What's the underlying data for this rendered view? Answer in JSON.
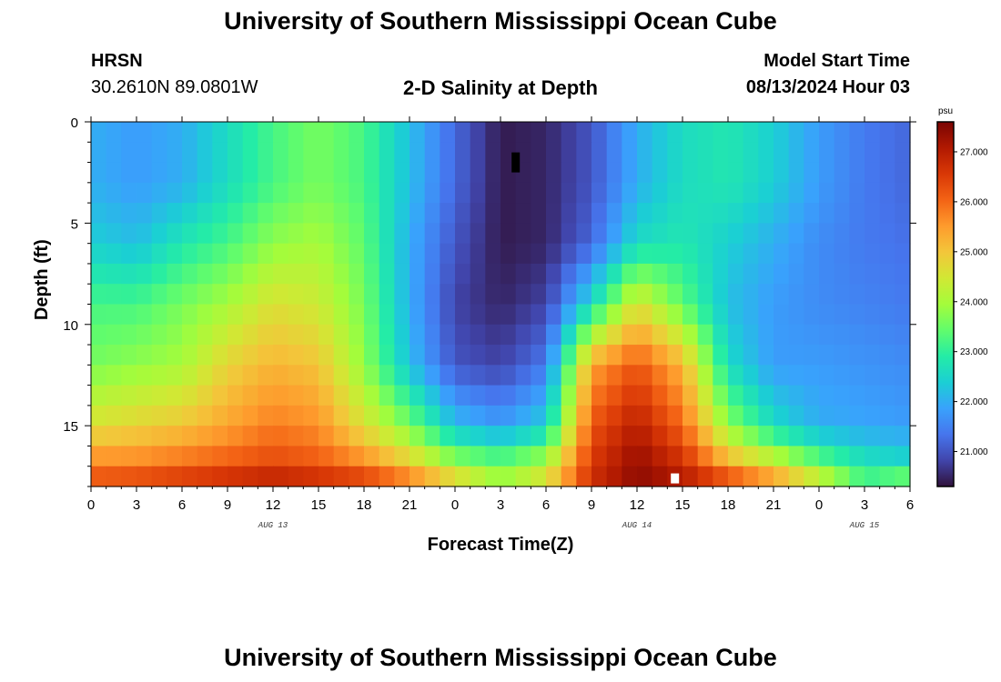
{
  "header": {
    "title": "University of Southern Mississippi Ocean Cube",
    "station": "HRSN",
    "coords": "30.2610N  89.0801W",
    "subtitle": "2-D Salinity at Depth",
    "model_label": "Model Start Time",
    "model_time": "08/13/2024 Hour 03"
  },
  "footer": {
    "title": "University of Southern Mississippi Ocean Cube"
  },
  "chart_data": {
    "type": "heatmap",
    "title": "2-D Salinity at Depth",
    "xlabel": "Forecast Time(Z)",
    "ylabel": "Depth (ft)",
    "x_hours_range": [
      0,
      54
    ],
    "x_tick_hours": [
      0,
      3,
      6,
      9,
      12,
      15,
      18,
      21,
      24,
      27,
      30,
      33,
      36,
      39,
      42,
      45,
      48,
      51,
      54
    ],
    "x_tick_labels": [
      "0",
      "3",
      "6",
      "9",
      "12",
      "15",
      "18",
      "21",
      "0",
      "3",
      "6",
      "9",
      "12",
      "15",
      "18",
      "21",
      "0",
      "3",
      "6"
    ],
    "date_labels": [
      {
        "label": "AUG 13",
        "hour": 12
      },
      {
        "label": "AUG 14",
        "hour": 36
      },
      {
        "label": "AUG 15",
        "hour": 51
      }
    ],
    "ylim": [
      0,
      18
    ],
    "y_ticks": [
      0,
      5,
      10,
      15
    ],
    "colorbar": {
      "unit": "psu",
      "min": 20.3,
      "max": 27.6,
      "ticks": [
        21.0,
        22.0,
        23.0,
        24.0,
        25.0,
        26.0,
        27.0
      ],
      "tick_labels": [
        "21.000",
        "22.000",
        "23.000",
        "24.000",
        "25.000",
        "26.000",
        "27.000"
      ],
      "colors": [
        "#30123b",
        "#4145ab",
        "#4675ed",
        "#39a2fc",
        "#1bcfd4",
        "#24eca6",
        "#61fc6c",
        "#a4fc3b",
        "#d1e834",
        "#f3c63a",
        "#fe9b2d",
        "#f36315",
        "#d93806",
        "#b11901",
        "#7a0403"
      ]
    },
    "grid_times": [
      0,
      3,
      6,
      9,
      12,
      15,
      18,
      21,
      24,
      27,
      30,
      33,
      36,
      39,
      42,
      45,
      48,
      51,
      54
    ],
    "grid_depths": [
      0,
      3,
      6,
      9,
      12,
      15,
      17,
      18
    ],
    "salinity_grid": [
      [
        22.0,
        21.8,
        22.0,
        22.6,
        23.2,
        23.6,
        23.2,
        22.2,
        21.2,
        20.4,
        20.5,
        21.0,
        22.0,
        22.6,
        22.8,
        22.4,
        21.8,
        21.4,
        21.2
      ],
      [
        22.0,
        21.8,
        22.0,
        22.6,
        23.2,
        23.6,
        23.2,
        22.2,
        21.2,
        20.4,
        20.5,
        21.0,
        22.0,
        22.6,
        22.8,
        22.4,
        21.8,
        21.4,
        21.2
      ],
      [
        22.4,
        22.2,
        22.8,
        23.2,
        23.8,
        24.0,
        23.4,
        22.0,
        21.0,
        20.4,
        20.5,
        21.2,
        22.6,
        22.8,
        22.4,
        22.0,
        21.6,
        21.4,
        21.3
      ],
      [
        23.2,
        23.2,
        23.6,
        24.0,
        24.6,
        24.4,
        23.6,
        22.0,
        20.8,
        20.5,
        20.8,
        22.6,
        24.6,
        23.4,
        22.2,
        21.8,
        21.6,
        21.5,
        21.4
      ],
      [
        23.6,
        23.8,
        24.0,
        24.8,
        25.2,
        25.0,
        23.8,
        22.2,
        21.0,
        20.8,
        21.4,
        25.4,
        26.2,
        25.2,
        22.6,
        21.8,
        21.8,
        21.7,
        21.6
      ],
      [
        24.6,
        24.8,
        25.0,
        25.4,
        25.8,
        25.6,
        24.6,
        23.6,
        22.2,
        21.8,
        22.4,
        26.2,
        27.0,
        26.0,
        23.8,
        22.6,
        22.0,
        21.9,
        21.8
      ],
      [
        25.8,
        25.8,
        26.0,
        26.2,
        26.4,
        26.2,
        25.8,
        25.0,
        24.0,
        23.6,
        24.2,
        26.6,
        27.4,
        26.8,
        25.4,
        24.6,
        23.6,
        22.8,
        22.6
      ],
      [
        26.4,
        26.6,
        26.8,
        27.0,
        27.2,
        27.0,
        26.8,
        26.2,
        25.2,
        24.0,
        24.8,
        26.8,
        27.4,
        27.2,
        26.8,
        26.0,
        24.8,
        23.4,
        24.2
      ]
    ],
    "annotations": [
      {
        "name": "missing-cell-dark",
        "hour": 28,
        "depth": 2
      },
      {
        "name": "missing-cell-white",
        "hour": 38.5,
        "depth": 17.6
      }
    ]
  }
}
